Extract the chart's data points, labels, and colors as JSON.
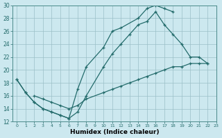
{
  "xlabel": "Humidex (Indice chaleur)",
  "xlim": [
    -0.5,
    23
  ],
  "ylim": [
    12,
    30
  ],
  "xticks": [
    0,
    1,
    2,
    3,
    4,
    5,
    6,
    7,
    8,
    9,
    10,
    11,
    12,
    13,
    14,
    15,
    16,
    17,
    18,
    19,
    20,
    21,
    22,
    23
  ],
  "yticks": [
    12,
    14,
    16,
    18,
    20,
    22,
    24,
    26,
    28,
    30
  ],
  "bg_color": "#cce8ef",
  "grid_color": "#9bbfc7",
  "line_color": "#236b6b",
  "line1_x": [
    0,
    1,
    2,
    3,
    4,
    5,
    6,
    7,
    8,
    10,
    11,
    12,
    14,
    15,
    16,
    17,
    18
  ],
  "line1_y": [
    18.5,
    16.5,
    15.0,
    14.0,
    13.5,
    13.0,
    12.5,
    17.0,
    20.5,
    23.5,
    26.0,
    26.5,
    28.0,
    29.5,
    30.0,
    29.5,
    29.0
  ],
  "line2_x": [
    0,
    1,
    2,
    3,
    4,
    5,
    6,
    7,
    8,
    10,
    11,
    12,
    13,
    14,
    15,
    16,
    17,
    18,
    19,
    20,
    21,
    22
  ],
  "line2_y": [
    18.5,
    16.5,
    15.0,
    14.0,
    13.5,
    13.0,
    12.5,
    13.5,
    16.0,
    20.5,
    22.5,
    24.0,
    25.5,
    27.0,
    27.5,
    29.0,
    27.0,
    25.5,
    24.0,
    22.0,
    22.0,
    21.0
  ],
  "line3_x": [
    2,
    3,
    4,
    5,
    6,
    7,
    8,
    10,
    11,
    12,
    13,
    14,
    15,
    16,
    17,
    18,
    19,
    20,
    21,
    22
  ],
  "line3_y": [
    16.0,
    15.5,
    15.0,
    14.5,
    14.0,
    14.5,
    15.5,
    16.5,
    17.0,
    17.5,
    18.0,
    18.5,
    19.0,
    19.5,
    20.0,
    20.5,
    20.5,
    21.0,
    21.0,
    21.0
  ]
}
